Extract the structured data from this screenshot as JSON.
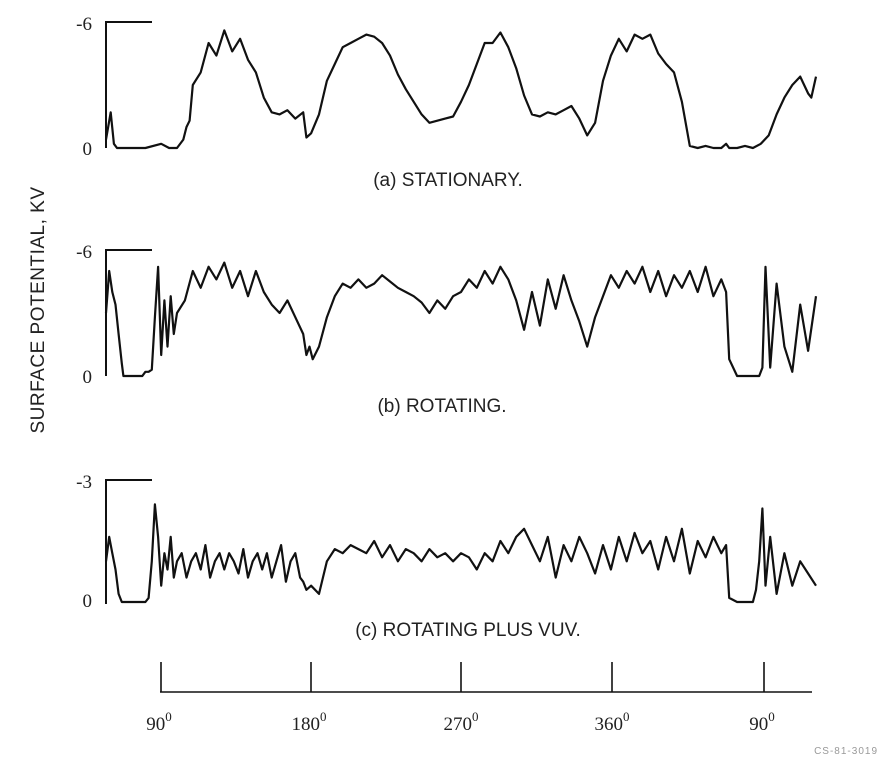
{
  "y_axis_label": "SURFACE POTENTIAL, KV",
  "footer_note": "CS-81-3019",
  "angle_axis": {
    "ticks": [
      {
        "value": "90",
        "unit": "0"
      },
      {
        "value": "180",
        "unit": "0"
      },
      {
        "value": "270",
        "unit": "0"
      },
      {
        "value": "360",
        "unit": "0"
      },
      {
        "value": "90",
        "unit": "0"
      }
    ]
  },
  "chart_data": [
    {
      "type": "line",
      "title": "(a) STATIONARY.",
      "ylabel": "SURFACE POTENTIAL, KV",
      "y_ticks": [
        "-6",
        "0"
      ],
      "ylim": [
        0,
        -6
      ],
      "x_unit": "degrees of rotation",
      "xlim": [
        55,
        505
      ],
      "series": [
        {
          "x": [
            55,
            58,
            60,
            62,
            66,
            70,
            80,
            90,
            95,
            100,
            104,
            106,
            108,
            110,
            115,
            120,
            125,
            130,
            135,
            140,
            145,
            150,
            155,
            160,
            165,
            170,
            175,
            180,
            182,
            185,
            190,
            195,
            200,
            205,
            210,
            215,
            220,
            225,
            230,
            235,
            240,
            245,
            250,
            255,
            260,
            265,
            270,
            275,
            280,
            285,
            290,
            295,
            300,
            305,
            310,
            315,
            320,
            325,
            330,
            335,
            340,
            345,
            350,
            355,
            360,
            365,
            370,
            375,
            380,
            385,
            390,
            395,
            400,
            405,
            410,
            415,
            420,
            425,
            430,
            435,
            440,
            445,
            448,
            450,
            455,
            460,
            465,
            470,
            475,
            480,
            485,
            490,
            495,
            500,
            502,
            505
          ],
          "y": [
            -0.4,
            -1.7,
            -0.2,
            0,
            0,
            0,
            0,
            -0.2,
            0,
            0,
            -0.4,
            -1.0,
            -1.3,
            -3.0,
            -3.6,
            -5.0,
            -4.4,
            -5.6,
            -4.6,
            -5.2,
            -4.2,
            -3.6,
            -2.4,
            -1.7,
            -1.6,
            -1.8,
            -1.4,
            -1.7,
            -0.5,
            -0.7,
            -1.6,
            -3.2,
            -4.0,
            -4.8,
            -5.0,
            -5.2,
            -5.4,
            -5.3,
            -5.0,
            -4.4,
            -3.5,
            -2.8,
            -2.2,
            -1.6,
            -1.2,
            -1.3,
            -1.4,
            -1.5,
            -2.2,
            -3.0,
            -4.0,
            -5.0,
            -5.0,
            -5.5,
            -4.8,
            -3.8,
            -2.5,
            -1.6,
            -1.5,
            -1.7,
            -1.6,
            -1.8,
            -2.0,
            -1.4,
            -0.6,
            -1.2,
            -3.2,
            -4.4,
            -5.2,
            -4.6,
            -5.4,
            -5.2,
            -5.4,
            -4.5,
            -4.0,
            -3.6,
            -2.2,
            -0.1,
            0,
            -0.1,
            0,
            0,
            -0.2,
            0,
            0,
            -0.1,
            0,
            -0.2,
            -0.6,
            -1.6,
            -2.4,
            -3.0,
            -3.4,
            -2.6,
            -2.4,
            -3.4
          ]
        }
      ]
    },
    {
      "type": "line",
      "title": "(b) ROTATING.",
      "ylabel": "SURFACE POTENTIAL, KV",
      "y_ticks": [
        "-6",
        "0"
      ],
      "ylim": [
        0,
        -6
      ],
      "x_unit": "degrees of rotation",
      "xlim": [
        55,
        505
      ],
      "series": [
        {
          "x": [
            55,
            57,
            59,
            61,
            63,
            65,
            66,
            67,
            70,
            75,
            78,
            80,
            82,
            84,
            86,
            88,
            90,
            92,
            94,
            96,
            98,
            100,
            105,
            110,
            115,
            120,
            125,
            130,
            135,
            140,
            145,
            150,
            155,
            160,
            165,
            170,
            175,
            180,
            182,
            184,
            186,
            190,
            195,
            200,
            205,
            210,
            215,
            220,
            225,
            230,
            235,
            240,
            245,
            250,
            255,
            260,
            265,
            270,
            275,
            280,
            285,
            290,
            295,
            300,
            305,
            310,
            315,
            320,
            325,
            330,
            335,
            340,
            345,
            350,
            355,
            360,
            365,
            370,
            375,
            380,
            385,
            390,
            395,
            400,
            405,
            410,
            415,
            420,
            425,
            430,
            435,
            440,
            445,
            448,
            450,
            455,
            460,
            463,
            465,
            467,
            469,
            471,
            473,
            476,
            480,
            485,
            490,
            495,
            500,
            505
          ],
          "y": [
            -3.0,
            -5.0,
            -4.0,
            -3.4,
            -2.0,
            -0.6,
            0,
            0,
            0,
            0,
            0,
            -0.2,
            -0.2,
            -0.3,
            -2.8,
            -5.2,
            -1.0,
            -3.6,
            -1.4,
            -3.8,
            -2.0,
            -3.0,
            -3.6,
            -5.0,
            -4.2,
            -5.2,
            -4.6,
            -5.4,
            -4.2,
            -5.0,
            -3.8,
            -5.0,
            -4.0,
            -3.4,
            -3.0,
            -3.6,
            -2.8,
            -2.0,
            -1.0,
            -1.4,
            -0.8,
            -1.4,
            -2.8,
            -3.8,
            -4.4,
            -4.2,
            -4.6,
            -4.2,
            -4.4,
            -4.8,
            -4.5,
            -4.2,
            -4.0,
            -3.8,
            -3.5,
            -3.0,
            -3.6,
            -3.2,
            -3.8,
            -4.0,
            -4.6,
            -4.2,
            -5.0,
            -4.4,
            -5.2,
            -4.6,
            -3.6,
            -2.2,
            -4.0,
            -2.4,
            -4.6,
            -3.2,
            -4.8,
            -3.6,
            -2.6,
            -1.4,
            -2.8,
            -3.8,
            -4.8,
            -4.2,
            -5.0,
            -4.4,
            -5.2,
            -4.0,
            -5.0,
            -3.8,
            -4.8,
            -4.2,
            -5.0,
            -4.0,
            -5.2,
            -3.8,
            -4.6,
            -4.0,
            -0.8,
            0,
            0,
            0,
            0,
            0,
            0,
            -0.4,
            -5.2,
            -0.4,
            -4.4,
            -1.4,
            -0.2,
            -3.4,
            -1.2,
            -3.8
          ]
        }
      ]
    },
    {
      "type": "line",
      "title": "(c) ROTATING PLUS VUV.",
      "ylabel": "SURFACE POTENTIAL, KV",
      "y_ticks": [
        "-3",
        "0"
      ],
      "ylim": [
        0,
        -3
      ],
      "x_unit": "degrees of rotation",
      "xlim": [
        55,
        505
      ],
      "series": [
        {
          "x": [
            55,
            57,
            59,
            61,
            63,
            65,
            66,
            67,
            70,
            75,
            80,
            82,
            84,
            86,
            88,
            90,
            92,
            94,
            96,
            98,
            100,
            103,
            106,
            109,
            112,
            115,
            118,
            121,
            124,
            127,
            130,
            133,
            136,
            139,
            142,
            145,
            148,
            151,
            154,
            157,
            160,
            163,
            166,
            169,
            172,
            175,
            178,
            180,
            182,
            185,
            190,
            195,
            200,
            205,
            210,
            215,
            220,
            225,
            230,
            235,
            240,
            245,
            250,
            255,
            260,
            265,
            270,
            275,
            280,
            285,
            290,
            295,
            300,
            305,
            310,
            315,
            320,
            325,
            330,
            335,
            340,
            345,
            350,
            355,
            360,
            365,
            370,
            375,
            380,
            385,
            390,
            395,
            400,
            405,
            410,
            415,
            420,
            425,
            430,
            435,
            440,
            445,
            448,
            450,
            455,
            460,
            463,
            465,
            467,
            469,
            471,
            473,
            476,
            480,
            485,
            490,
            495,
            500,
            505
          ],
          "y": [
            -1.0,
            -1.6,
            -1.2,
            -0.8,
            -0.2,
            0,
            0,
            0,
            0,
            0,
            0,
            -0.1,
            -1.0,
            -2.4,
            -1.6,
            -0.4,
            -1.2,
            -0.8,
            -1.6,
            -0.6,
            -1.0,
            -1.2,
            -0.6,
            -1.0,
            -1.2,
            -0.8,
            -1.4,
            -0.6,
            -1.0,
            -1.2,
            -0.8,
            -1.2,
            -1.0,
            -0.7,
            -1.3,
            -0.6,
            -1.0,
            -1.2,
            -0.8,
            -1.2,
            -0.6,
            -1.0,
            -1.4,
            -0.5,
            -1.0,
            -1.2,
            -0.6,
            -0.5,
            -0.3,
            -0.4,
            -0.2,
            -1.0,
            -1.3,
            -1.2,
            -1.4,
            -1.3,
            -1.2,
            -1.5,
            -1.1,
            -1.4,
            -1.0,
            -1.3,
            -1.2,
            -1.0,
            -1.3,
            -1.1,
            -1.2,
            -1.0,
            -1.2,
            -1.1,
            -0.8,
            -1.2,
            -1.0,
            -1.5,
            -1.2,
            -1.6,
            -1.8,
            -1.4,
            -1.0,
            -1.6,
            -0.6,
            -1.4,
            -1.0,
            -1.6,
            -1.2,
            -0.7,
            -1.4,
            -0.8,
            -1.6,
            -1.0,
            -1.7,
            -1.2,
            -1.5,
            -0.8,
            -1.6,
            -1.0,
            -1.8,
            -0.7,
            -1.5,
            -1.1,
            -1.6,
            -1.2,
            -1.4,
            -0.1,
            0,
            0,
            0,
            0,
            -0.3,
            -1.0,
            -2.3,
            -0.4,
            -1.6,
            -0.2,
            -1.2,
            -0.4,
            -1.0,
            -0.7,
            -0.4
          ]
        }
      ]
    }
  ]
}
